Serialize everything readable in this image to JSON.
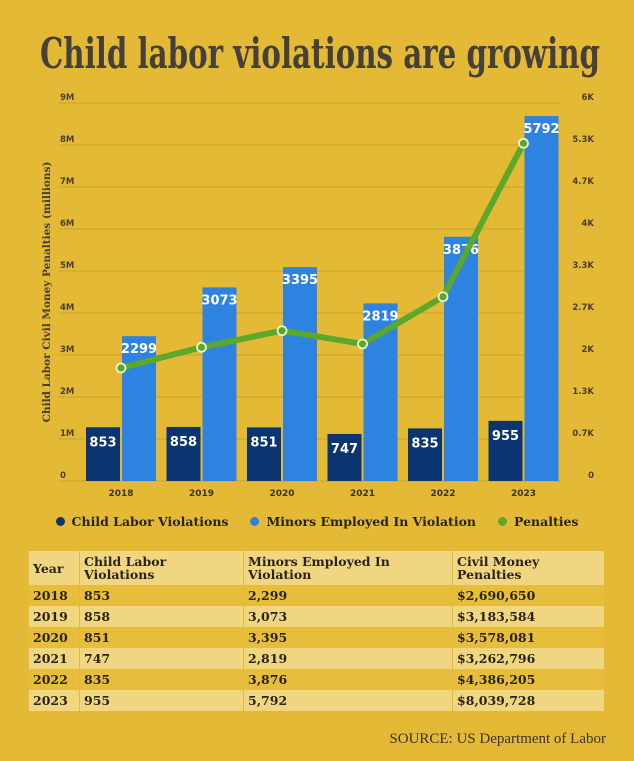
{
  "title": "Child labor violations are growing",
  "colors": {
    "background": "#E3B935",
    "violations": "#0B3570",
    "minors": "#2E83E0",
    "penalties": "#5BA82A",
    "title": "#45413a"
  },
  "chart_data": {
    "type": "bar",
    "title": "Child labor violations are growing",
    "categories": [
      "2018",
      "2019",
      "2020",
      "2021",
      "2022",
      "2023"
    ],
    "series": [
      {
        "name": "Child Labor Violations",
        "type": "bar",
        "axis": "right",
        "values": [
          853,
          858,
          851,
          747,
          835,
          955
        ]
      },
      {
        "name": "Minors Employed In Violation",
        "type": "bar",
        "axis": "right",
        "values": [
          2299,
          3073,
          3395,
          2819,
          3876,
          5792
        ]
      },
      {
        "name": "Penalties",
        "type": "line",
        "axis": "left",
        "values": [
          2690650,
          3183584,
          3578081,
          3262796,
          4386205,
          8039728
        ]
      }
    ],
    "bar_labels": {
      "violations": [
        "853",
        "858",
        "851",
        "747",
        "835",
        "955"
      ],
      "minors": [
        "2299",
        "3073",
        "3395",
        "2819",
        "3876",
        "5792"
      ]
    },
    "ylabel": "Child Labor Civil Money Penalties (millions)",
    "ylim": [
      0,
      9000000
    ],
    "y2lim": [
      0,
      6000
    ],
    "left_ticks": [
      "0",
      "1M",
      "2M",
      "3M",
      "4M",
      "5M",
      "6M",
      "7M",
      "8M",
      "9M"
    ],
    "right_ticks": [
      "0",
      "0.7K",
      "1.3K",
      "2K",
      "2.7K",
      "3.3K",
      "4K",
      "4.7K",
      "5.3K",
      "6K"
    ],
    "grid": true,
    "legend_position": "bottom"
  },
  "legend": [
    "Child Labor Violations",
    "Minors Employed In Violation",
    "Penalties"
  ],
  "table": {
    "headers": [
      "Year",
      "Child Labor Violations",
      "Minors Employed In Violation",
      "Civil Money Penalties"
    ],
    "rows": [
      [
        "2018",
        "853",
        "2,299",
        "$2,690,650"
      ],
      [
        "2019",
        "858",
        "3,073",
        "$3,183,584"
      ],
      [
        "2020",
        "851",
        "3,395",
        "$3,578,081"
      ],
      [
        "2021",
        "747",
        "2,819",
        "$3,262,796"
      ],
      [
        "2022",
        "835",
        "3,876",
        "$4,386,205"
      ],
      [
        "2023",
        "955",
        "5,792",
        "$8,039,728"
      ]
    ]
  },
  "source": "SOURCE: US Department of Labor"
}
